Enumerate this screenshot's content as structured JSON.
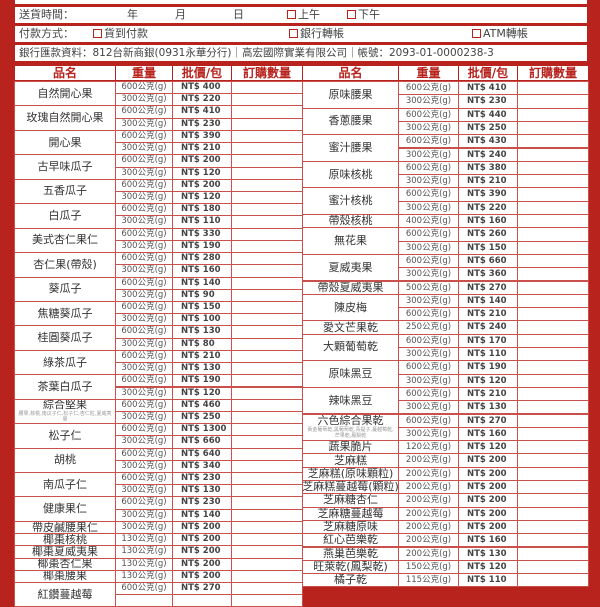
{
  "delivery": {
    "label": "送貨時間：",
    "year": "年",
    "month": "月",
    "day": "日",
    "am": "上午",
    "pm": "下午"
  },
  "payment": {
    "label": "付款方式：",
    "options": [
      "貨到付款",
      "銀行轉帳",
      "ATM轉帳"
    ]
  },
  "bank": {
    "text": "銀行匯款資料：812台新商銀(0931永華分行)｜高宏國際實業有限公司｜帳號：2093-01-0000238-3"
  },
  "headers": [
    "品名",
    "重量",
    "批價/包",
    "訂購數量"
  ],
  "accent": "#b8231e",
  "left": [
    {
      "name": "自然開心果",
      "v": [
        [
          "600公克(g)",
          "NT$ 400"
        ],
        [
          "300公克(g)",
          "NT$ 220"
        ]
      ]
    },
    {
      "name": "玫瑰自然開心果",
      "v": [
        [
          "600公克(g)",
          "NT$ 410"
        ],
        [
          "300公克(g)",
          "NT$ 230"
        ]
      ]
    },
    {
      "name": "開心果",
      "v": [
        [
          "600公克(g)",
          "NT$ 390"
        ],
        [
          "300公克(g)",
          "NT$ 210"
        ]
      ]
    },
    {
      "name": "古早味瓜子",
      "v": [
        [
          "600公克(g)",
          "NT$ 200"
        ],
        [
          "300公克(g)",
          "NT$ 120"
        ]
      ]
    },
    {
      "name": "五香瓜子",
      "v": [
        [
          "600公克(g)",
          "NT$ 200"
        ],
        [
          "300公克(g)",
          "NT$ 120"
        ]
      ]
    },
    {
      "name": "白瓜子",
      "v": [
        [
          "600公克(g)",
          "NT$ 180"
        ],
        [
          "300公克(g)",
          "NT$ 110"
        ]
      ]
    },
    {
      "name": "美式杏仁果仁",
      "v": [
        [
          "600公克(g)",
          "NT$ 330"
        ],
        [
          "300公克(g)",
          "NT$ 190"
        ]
      ]
    },
    {
      "name": "杏仁果(帶殼)",
      "v": [
        [
          "600公克(g)",
          "NT$ 280"
        ],
        [
          "300公克(g)",
          "NT$ 160"
        ]
      ]
    },
    {
      "name": "葵瓜子",
      "v": [
        [
          "600公克(g)",
          "NT$ 140"
        ],
        [
          "300公克(g)",
          "NT$ 90"
        ]
      ]
    },
    {
      "name": "焦糖葵瓜子",
      "v": [
        [
          "600公克(g)",
          "NT$ 150"
        ],
        [
          "300公克(g)",
          "NT$ 100"
        ]
      ]
    },
    {
      "name": "桂圓葵瓜子",
      "v": [
        [
          "600公克(g)",
          "NT$ 130"
        ],
        [
          "300公克(g)",
          "NT$ 80"
        ]
      ]
    },
    {
      "name": "綠茶瓜子",
      "v": [
        [
          "600公克(g)",
          "NT$ 210"
        ],
        [
          "300公克(g)",
          "NT$ 130"
        ]
      ]
    },
    {
      "name": "茶葉白瓜子",
      "v": [
        [
          "600公克(g)",
          "NT$ 190"
        ],
        [
          "300公克(g)",
          "NT$ 120"
        ]
      ]
    },
    {
      "name": "綜合堅果",
      "note": "腰果,核桃,南瓜子仁,松子仁,杏仁粒,夏威夷果",
      "v": [
        [
          "600公克(g)",
          "NT$ 460"
        ],
        [
          "300公克(g)",
          "NT$ 250"
        ]
      ]
    },
    {
      "name": "松子仁",
      "v": [
        [
          "600公克(g)",
          "NT$ 1300"
        ],
        [
          "300公克(g)",
          "NT$ 660"
        ]
      ]
    },
    {
      "name": "胡桃",
      "v": [
        [
          "600公克(g)",
          "NT$ 640"
        ],
        [
          "300公克(g)",
          "NT$ 340"
        ]
      ]
    },
    {
      "name": "南瓜子仁",
      "v": [
        [
          "600公克(g)",
          "NT$ 230"
        ],
        [
          "300公克(g)",
          "NT$ 130"
        ]
      ]
    },
    {
      "name": "健康果仁",
      "v": [
        [
          "600公克(g)",
          "NT$ 230"
        ],
        [
          "300公克(g)",
          "NT$ 140"
        ]
      ]
    },
    {
      "name": "帶皮鹹腰果仁",
      "v": [
        [
          "300公克(g)",
          "NT$ 200"
        ]
      ]
    },
    {
      "name": "椰棗核桃",
      "v": [
        [
          "130公克(g)",
          "NT$ 200"
        ]
      ]
    },
    {
      "name": "椰棗夏威夷果",
      "v": [
        [
          "130公克(g)",
          "NT$ 200"
        ]
      ]
    },
    {
      "name": "椰棗杏仁果",
      "v": [
        [
          "130公克(g)",
          "NT$ 200"
        ]
      ]
    },
    {
      "name": "椰棗腰果",
      "v": [
        [
          "130公克(g)",
          "NT$ 200"
        ]
      ]
    },
    {
      "name": "紅鑽蔓越莓",
      "v": [
        [
          "600公克(g)",
          "NT$ 270"
        ],
        [
          "",
          ""
        ]
      ]
    }
  ],
  "right": [
    {
      "name": "原味腰果",
      "v": [
        [
          "600公克(g)",
          "NT$ 410"
        ],
        [
          "300公克(g)",
          "NT$ 230"
        ]
      ]
    },
    {
      "name": "香蔥腰果",
      "v": [
        [
          "600公克(g)",
          "NT$ 440"
        ],
        [
          "300公克(g)",
          "NT$ 250"
        ]
      ]
    },
    {
      "name": "蜜汁腰果",
      "v": [
        [
          "600公克(g)",
          "NT$ 430"
        ],
        [
          "300公克(g)",
          "NT$ 240"
        ]
      ]
    },
    {
      "name": "原味核桃",
      "v": [
        [
          "600公克(g)",
          "NT$ 380"
        ],
        [
          "300公克(g)",
          "NT$ 210"
        ]
      ]
    },
    {
      "name": "蜜汁核桃",
      "v": [
        [
          "600公克(g)",
          "NT$ 390"
        ],
        [
          "300公克(g)",
          "NT$ 220"
        ]
      ]
    },
    {
      "name": "帶殼核桃",
      "v": [
        [
          "400公克(g)",
          "NT$ 160"
        ]
      ]
    },
    {
      "name": "無花果",
      "v": [
        [
          "600公克(g)",
          "NT$ 260"
        ],
        [
          "300公克(g)",
          "NT$ 150"
        ]
      ]
    },
    {
      "name": "夏威夷果",
      "v": [
        [
          "600公克(g)",
          "NT$ 660"
        ],
        [
          "300公克(g)",
          "NT$ 360"
        ]
      ]
    },
    {
      "name": "帶殼夏威夷果",
      "v": [
        [
          "500公克(g)",
          "NT$ 270"
        ]
      ]
    },
    {
      "name": "陳皮梅",
      "v": [
        [
          "300公克(g)",
          "NT$ 140"
        ],
        [
          "600公克(g)",
          "NT$ 210"
        ]
      ]
    },
    {
      "name": "愛文芒果乾",
      "v": [
        [
          "250公克(g)",
          "NT$ 240"
        ]
      ]
    },
    {
      "name": "大顆葡萄乾",
      "v": [
        [
          "600公克(g)",
          "NT$ 170"
        ],
        [
          "300公克(g)",
          "NT$ 110"
        ]
      ]
    },
    {
      "name": "原味黑豆",
      "v": [
        [
          "600公克(g)",
          "NT$ 190"
        ],
        [
          "300公克(g)",
          "NT$ 120"
        ]
      ]
    },
    {
      "name": "辣味黑豆",
      "v": [
        [
          "600公克(g)",
          "NT$ 210"
        ],
        [
          "300公克(g)",
          "NT$ 130"
        ]
      ]
    },
    {
      "name": "六色綜合果乾",
      "note": "黃金葡萄乾,黑葡萄乾,青提子,蔓越莓乾,芒果乾,鳳梨乾",
      "v": [
        [
          "600公克(g)",
          "NT$ 270"
        ],
        [
          "300公克(g)",
          "NT$ 160"
        ]
      ]
    },
    {
      "name": "蔬果脆片",
      "v": [
        [
          "120公克(g)",
          "NT$ 120"
        ]
      ]
    },
    {
      "name": "芝麻糕",
      "v": [
        [
          "200公克(g)",
          "NT$ 200"
        ]
      ]
    },
    {
      "name": "芝麻糕(原味顆粒)",
      "v": [
        [
          "200公克(g)",
          "NT$ 200"
        ]
      ]
    },
    {
      "name": "芝麻糕蔓越莓(顆粒)",
      "v": [
        [
          "200公克(g)",
          "NT$ 200"
        ]
      ]
    },
    {
      "name": "芝麻糖杏仁",
      "v": [
        [
          "200公克(g)",
          "NT$ 200"
        ]
      ]
    },
    {
      "name": "芝麻糖蔓越莓",
      "v": [
        [
          "200公克(g)",
          "NT$ 200"
        ]
      ]
    },
    {
      "name": "芝麻糖原味",
      "v": [
        [
          "200公克(g)",
          "NT$ 200"
        ]
      ]
    },
    {
      "name": "紅心芭樂乾",
      "v": [
        [
          "200公克(g)",
          "NT$ 160"
        ]
      ]
    },
    {
      "name": "燕巢芭樂乾",
      "v": [
        [
          "200公克(g)",
          "NT$ 130"
        ]
      ]
    },
    {
      "name": "旺萊乾(鳳梨乾)",
      "v": [
        [
          "150公克(g)",
          "NT$ 120"
        ]
      ]
    },
    {
      "name": "橘子乾",
      "v": [
        [
          "115公克(g)",
          "NT$ 110"
        ]
      ]
    }
  ]
}
